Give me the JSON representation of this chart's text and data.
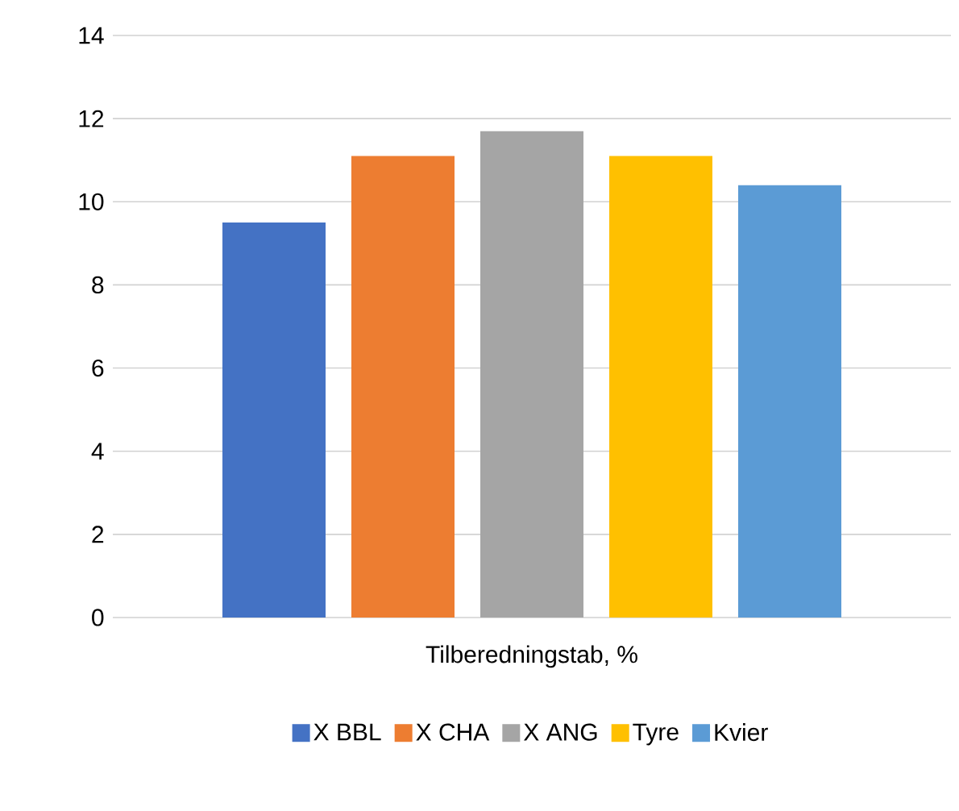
{
  "chart_data": {
    "type": "bar",
    "categories": [
      "Tilberedningstab, %"
    ],
    "series": [
      {
        "name": "X BBL",
        "color": "#4472c4",
        "values": [
          9.5
        ]
      },
      {
        "name": "X CHA",
        "color": "#ed7d31",
        "values": [
          11.1
        ]
      },
      {
        "name": "X ANG",
        "color": "#a5a5a5",
        "values": [
          11.7
        ]
      },
      {
        "name": "Tyre",
        "color": "#ffc000",
        "values": [
          11.1
        ]
      },
      {
        "name": "Kvier",
        "color": "#5b9bd5",
        "values": [
          10.4
        ]
      }
    ],
    "ylim": [
      0,
      14
    ],
    "yticks": [
      0,
      2,
      4,
      6,
      8,
      10,
      12,
      14
    ],
    "grid": "y",
    "legend": "bottom"
  }
}
